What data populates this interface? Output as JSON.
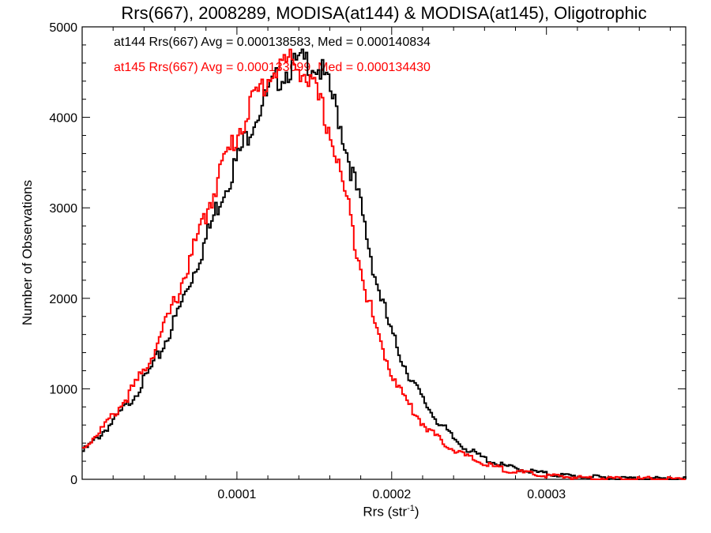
{
  "chart_data": {
    "type": "line",
    "title": "Rrs(667), 2008289, MODISA(at144) & MODISA(at145), Oligotrophic",
    "xlabel": "Rrs (str",
    "xlabel_sup": "-1",
    "xlabel_close": ")",
    "ylabel": "Number of Observations",
    "xlim": [
      0.0,
      0.00039
    ],
    "ylim": [
      0,
      5000
    ],
    "x_ticks": [
      {
        "value": 0.0001,
        "label": "0.0001"
      },
      {
        "value": 0.0002,
        "label": "0.0002"
      },
      {
        "value": 0.0003,
        "label": "0.0003"
      }
    ],
    "y_ticks": [
      {
        "value": 0,
        "label": "0"
      },
      {
        "value": 1000,
        "label": "1000"
      },
      {
        "value": 2000,
        "label": "2000"
      },
      {
        "value": 3000,
        "label": "3000"
      },
      {
        "value": 4000,
        "label": "4000"
      },
      {
        "value": 5000,
        "label": "5000"
      }
    ],
    "grid": false,
    "legend_position": "top-left",
    "series": [
      {
        "legend": "at144 Rrs(667) Avg = 0.000138583, Med = 0.000140834",
        "color": "#000000",
        "x": [
          0.0,
          1e-05,
          2e-05,
          3e-05,
          4e-05,
          5e-05,
          6e-05,
          7e-05,
          8e-05,
          9e-05,
          0.0001,
          0.00011,
          0.00012,
          0.000125,
          0.00013,
          0.000135,
          0.00014,
          0.000145,
          0.00015,
          0.000155,
          0.00016,
          0.000165,
          0.00017,
          0.000175,
          0.00018,
          0.000185,
          0.00019,
          0.000195,
          0.0002,
          0.00021,
          0.00022,
          0.00023,
          0.00024,
          0.00025,
          0.00026,
          0.00027,
          0.00028,
          0.00029,
          0.0003,
          0.00032,
          0.00034,
          0.00036,
          0.00039
        ],
        "y": [
          300,
          460,
          640,
          840,
          1090,
          1380,
          1760,
          2200,
          2650,
          3150,
          3520,
          3950,
          4250,
          4400,
          4480,
          4550,
          4600,
          4620,
          4580,
          4500,
          4300,
          4050,
          3700,
          3350,
          3000,
          2600,
          2200,
          1900,
          1600,
          1200,
          880,
          640,
          450,
          320,
          230,
          160,
          120,
          90,
          60,
          30,
          15,
          8,
          3
        ]
      },
      {
        "legend": "at145 Rrs(667) Avg = 0.000133099, Med = 0.000134430",
        "color": "#ff0000",
        "x": [
          0.0,
          1e-05,
          2e-05,
          3e-05,
          4e-05,
          5e-05,
          6e-05,
          7e-05,
          8e-05,
          9e-05,
          0.0001,
          0.00011,
          0.00012,
          0.000125,
          0.00013,
          0.000135,
          0.00014,
          0.000145,
          0.00015,
          0.000155,
          0.00016,
          0.000165,
          0.00017,
          0.000175,
          0.00018,
          0.000185,
          0.00019,
          0.000195,
          0.0002,
          0.00021,
          0.00022,
          0.00023,
          0.00024,
          0.00025,
          0.00026,
          0.00027,
          0.00028,
          0.00029,
          0.0003,
          0.00032,
          0.00034,
          0.00036,
          0.00039
        ],
        "y": [
          330,
          510,
          700,
          930,
          1200,
          1550,
          1970,
          2430,
          2930,
          3450,
          3800,
          4180,
          4420,
          4530,
          4600,
          4620,
          4560,
          4450,
          4300,
          4100,
          3850,
          3500,
          3150,
          2750,
          2380,
          1980,
          1650,
          1400,
          1180,
          850,
          620,
          450,
          330,
          240,
          170,
          120,
          85,
          60,
          40,
          20,
          10,
          5,
          2
        ]
      }
    ]
  }
}
